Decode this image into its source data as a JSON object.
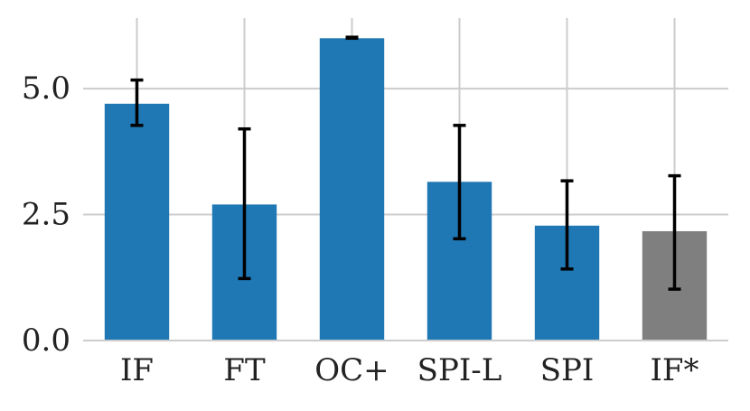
{
  "chart_data": {
    "type": "bar",
    "categories": [
      "IF",
      "FT",
      "OC+",
      "SPI-L",
      "SPI",
      "IF*"
    ],
    "values": [
      4.7,
      2.7,
      6.0,
      3.15,
      2.28,
      2.17
    ],
    "error_low": [
      4.27,
      1.23,
      6.0,
      2.02,
      1.42,
      1.02
    ],
    "error_high": [
      5.17,
      4.2,
      6.02,
      4.27,
      3.17,
      3.27
    ],
    "ylim": [
      0,
      6.4
    ],
    "yticks": [
      "0.0",
      "2.5",
      "5.0"
    ],
    "ytick_values": [
      0,
      2.5,
      5.0
    ],
    "grid": true,
    "colors": [
      "#1f77b4",
      "#1f77b4",
      "#1f77b4",
      "#1f77b4",
      "#1f77b4",
      "#7f7f7f"
    ],
    "title": "",
    "xlabel": "",
    "ylabel": ""
  }
}
